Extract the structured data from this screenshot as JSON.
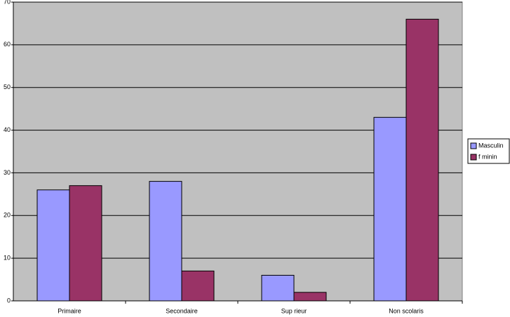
{
  "chart_data": {
    "type": "bar",
    "categories": [
      "Primaire",
      "Secondaire",
      "Sup rieur",
      "Non scolaris"
    ],
    "series": [
      {
        "name": "Masculin",
        "color": "#9999ff",
        "values": [
          26,
          28,
          6,
          43
        ]
      },
      {
        "name": "f minin",
        "color": "#993366",
        "values": [
          27,
          7,
          2,
          66
        ]
      }
    ],
    "ylim": [
      0,
      70
    ],
    "yticks": [
      0,
      10,
      20,
      30,
      40,
      50,
      60,
      70
    ],
    "grid": true,
    "legend": "right"
  }
}
